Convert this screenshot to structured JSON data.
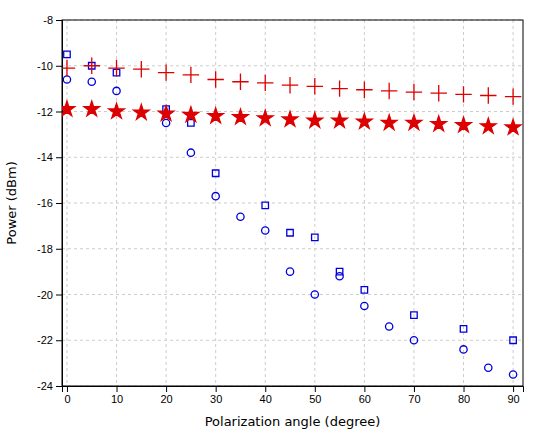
{
  "chart_data": {
    "type": "scatter",
    "xlabel": "Polarization angle (degree)",
    "ylabel": "Power (dBm)",
    "xlim": [
      -1,
      92
    ],
    "ylim": [
      -24,
      -8
    ],
    "xticks": [
      0,
      10,
      20,
      30,
      40,
      50,
      60,
      70,
      80,
      90
    ],
    "yticks": [
      -24,
      -22,
      -20,
      -18,
      -16,
      -14,
      -12,
      -10,
      -8
    ],
    "grid": true,
    "series": [
      {
        "color": "#0000dd",
        "marker": "square",
        "x": [
          0,
          5,
          10,
          20,
          25,
          30,
          40,
          45,
          50,
          55,
          60,
          70,
          80,
          90
        ],
        "values": [
          -9.5,
          -10.0,
          -10.3,
          -11.9,
          -12.5,
          -14.7,
          -16.1,
          -17.3,
          -17.5,
          -19.0,
          -19.8,
          -20.9,
          -21.5,
          -22.0
        ]
      },
      {
        "color": "#0000dd",
        "marker": "circle",
        "x": [
          0,
          5,
          10,
          20,
          25,
          30,
          35,
          40,
          45,
          50,
          55,
          60,
          65,
          70,
          80,
          85,
          90
        ],
        "values": [
          -10.6,
          -10.7,
          -11.1,
          -12.5,
          -13.8,
          -15.7,
          -16.6,
          -17.2,
          -19.0,
          -20.0,
          -19.2,
          -20.5,
          -21.4,
          -22.0,
          -22.4,
          -23.2,
          -23.5
        ]
      },
      {
        "color": "#dd0000",
        "marker": "plus",
        "x": [
          0,
          5,
          10,
          15,
          20,
          25,
          30,
          35,
          40,
          45,
          50,
          55,
          60,
          65,
          70,
          75,
          80,
          85,
          90
        ],
        "values": [
          -10.1,
          -10.0,
          -10.1,
          -10.15,
          -10.3,
          -10.4,
          -10.6,
          -10.7,
          -10.75,
          -10.85,
          -10.9,
          -11.0,
          -11.05,
          -11.1,
          -11.15,
          -11.2,
          -11.25,
          -11.3,
          -11.35
        ]
      },
      {
        "color": "#dd0000",
        "marker": "star",
        "x": [
          0,
          5,
          10,
          15,
          20,
          25,
          30,
          35,
          40,
          45,
          50,
          55,
          60,
          65,
          70,
          75,
          80,
          85,
          90
        ],
        "values": [
          -11.9,
          -11.9,
          -12.0,
          -12.05,
          -12.1,
          -12.15,
          -12.2,
          -12.25,
          -12.3,
          -12.35,
          -12.4,
          -12.4,
          -12.45,
          -12.5,
          -12.5,
          -12.55,
          -12.6,
          -12.65,
          -12.7
        ]
      }
    ]
  }
}
